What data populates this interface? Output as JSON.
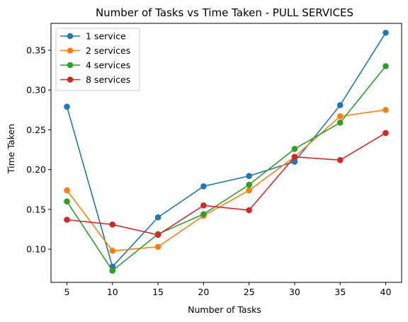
{
  "chart_data": {
    "type": "line",
    "title": "Number of Tasks vs Time Taken - PULL SERVICES",
    "xlabel": "Number of Tasks",
    "ylabel": "Time Taken",
    "x": [
      5,
      10,
      15,
      20,
      25,
      30,
      35,
      40
    ],
    "x_ticks": [
      "5",
      "10",
      "15",
      "20",
      "25",
      "30",
      "35",
      "40"
    ],
    "y_ticks": [
      "0.10",
      "0.15",
      "0.20",
      "0.25",
      "0.30",
      "0.35"
    ],
    "xlim": [
      3.25,
      41.75
    ],
    "ylim": [
      0.0583,
      0.3838
    ],
    "grid": false,
    "legend_position": "upper-left",
    "series": [
      {
        "name": "1 service",
        "color": "#1f77b4",
        "values": [
          0.279,
          0.078,
          0.14,
          0.179,
          0.192,
          0.21,
          0.281,
          0.372
        ]
      },
      {
        "name": "2 services",
        "color": "#ff7f0e",
        "values": [
          0.174,
          0.098,
          0.103,
          0.142,
          0.174,
          0.216,
          0.267,
          0.275
        ]
      },
      {
        "name": "4 services",
        "color": "#2ca02c",
        "values": [
          0.16,
          0.073,
          0.119,
          0.144,
          0.181,
          0.226,
          0.259,
          0.33
        ]
      },
      {
        "name": "8 services",
        "color": "#d62728",
        "values": [
          0.137,
          0.131,
          0.118,
          0.155,
          0.149,
          0.216,
          0.212,
          0.246
        ]
      }
    ]
  }
}
